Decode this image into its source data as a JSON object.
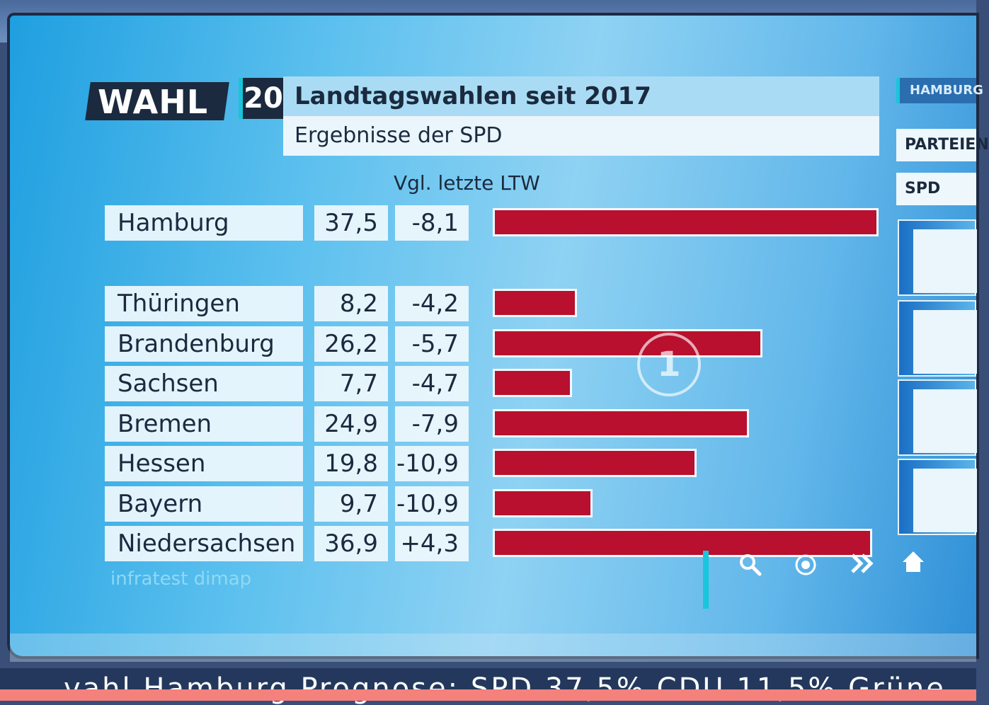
{
  "branding": {
    "logo_text": "WAHL",
    "logo_number": "20"
  },
  "chart_data": {
    "type": "bar",
    "orientation": "horizontal",
    "title": "Landtagswahlen seit 2017",
    "subtitle": "Ergebnisse der SPD",
    "column_header": "Vgl. letzte LTW",
    "source": "infratest dimap",
    "xlim": [
      0,
      37.5
    ],
    "highlight": {
      "state": "Hamburg",
      "value": 37.5,
      "value_label": "37,5",
      "change_label": "-8,1"
    },
    "categories": [
      "Thüringen",
      "Brandenburg",
      "Sachsen",
      "Bremen",
      "Hessen",
      "Bayern",
      "Niedersachsen"
    ],
    "values": [
      8.2,
      26.2,
      7.7,
      24.9,
      19.8,
      9.7,
      36.9
    ],
    "value_labels": [
      "8,2",
      "26,2",
      "7,7",
      "24,9",
      "19,8",
      "9,7",
      "36,9"
    ],
    "change_labels": [
      "-4,2",
      "-5,7",
      "-4,7",
      "-7,9",
      "-10,9",
      "-10,9",
      "+4,3"
    ],
    "bar_color": "#b8102e"
  },
  "sidebar": {
    "tab": "HAMBURG",
    "buttons": [
      "PARTEIEN",
      "SPD"
    ]
  },
  "nav": {
    "icons": [
      "search-icon",
      "target-icon",
      "forward-icon",
      "home-icon"
    ]
  },
  "ticker": {
    "text": "vahl Hamburg  Prognose:   SPD 37,5%    CDU 11,5%    Grüne"
  }
}
